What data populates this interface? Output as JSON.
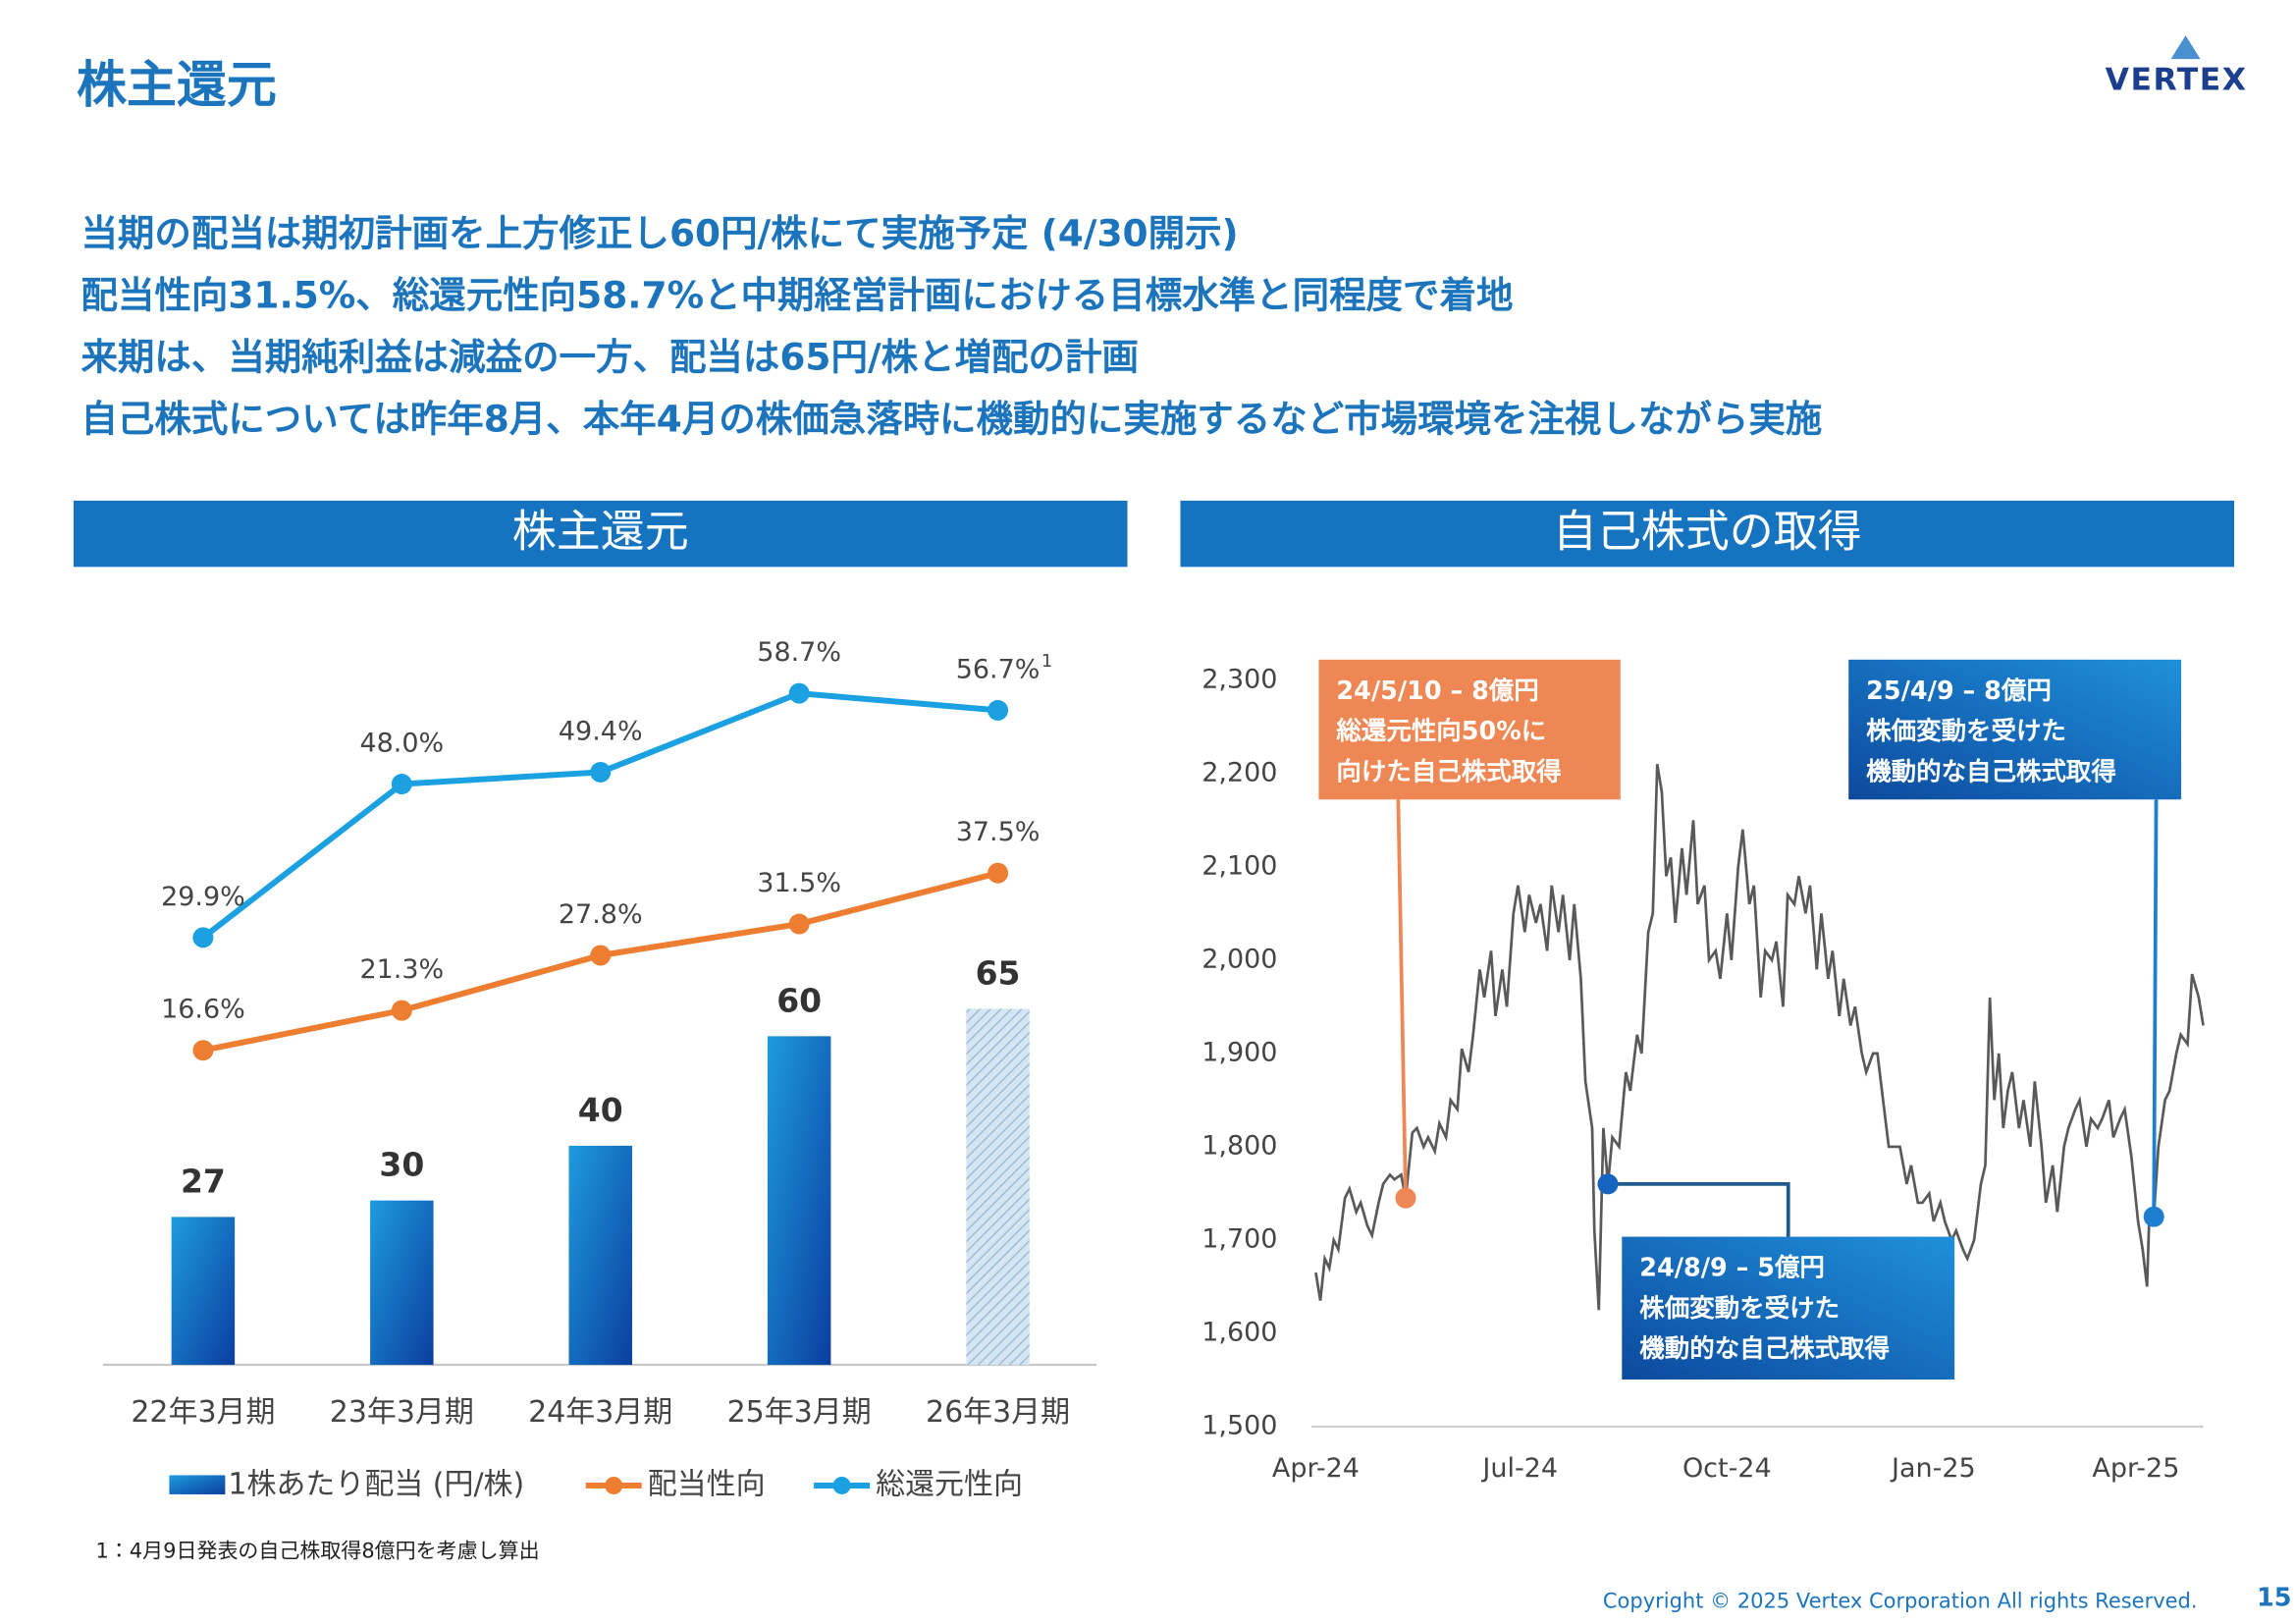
{
  "header": {
    "title": "株主還元",
    "logo": "VERTEX"
  },
  "bullets": [
    "当期の配当は期初計画を上方修正し60円/株にて実施予定 (4/30開示)",
    "配当性向31.5%、総還元性向58.7%と中期経営計画における目標水準と同程度で着地",
    "来期は、当期純利益は減益の一方、配当は65円/株と増配の計画",
    "自己株式については昨年8月、本年4月の株価急落時に機動的に実施するなど市場環境を注視しながら実施"
  ],
  "footnote": "1：4月9日発表の自己株取得8億円を考慮し算出",
  "copyright": "Copyright © 2025 Vertex Corporation All rights Reserved.",
  "page_number": "15",
  "chart_data": [
    {
      "type": "combo",
      "title": "株主還元",
      "categories": [
        "22年3月期",
        "23年3月期",
        "24年3月期",
        "25年3月期",
        "26年3月期"
      ],
      "series": [
        {
          "name": "1株あたり配当 (円/株)",
          "type": "bar",
          "color": "#1565C0",
          "values": [
            27,
            30,
            40,
            60,
            65
          ],
          "patterns": [
            "solid",
            "solid",
            "solid",
            "solid",
            "hatched"
          ]
        },
        {
          "name": "配当性向",
          "type": "line",
          "color": "#ED7D31",
          "values": [
            16.6,
            21.3,
            27.8,
            31.5,
            37.5
          ],
          "value_labels": [
            "16.6%",
            "21.3%",
            "27.8%",
            "31.5%",
            "37.5%"
          ]
        },
        {
          "name": "総還元性向",
          "type": "line",
          "color": "#1BA1E2",
          "values": [
            29.9,
            48.0,
            49.4,
            58.7,
            56.7
          ],
          "value_labels": [
            "29.9%",
            "48.0%",
            "49.4%",
            "58.7%",
            "56.7%"
          ],
          "footnote_marks": [
            null,
            null,
            null,
            null,
            "1"
          ]
        }
      ]
    },
    {
      "type": "line",
      "title": "自己株式の取得",
      "color": "#595959",
      "grid": false,
      "xlim": [
        0,
        395
      ],
      "xticks": [
        {
          "value": 0,
          "label": "Apr-24"
        },
        {
          "value": 91,
          "label": "Jul-24"
        },
        {
          "value": 183,
          "label": "Oct-24"
        },
        {
          "value": 275,
          "label": "Jan-25"
        },
        {
          "value": 365,
          "label": "Apr-25"
        }
      ],
      "ylim": [
        1500,
        2300
      ],
      "yticks": [
        {
          "value": 1500,
          "label": "1,500"
        },
        {
          "value": 1600,
          "label": "1,600"
        },
        {
          "value": 1700,
          "label": "1,700"
        },
        {
          "value": 1800,
          "label": "1,800"
        },
        {
          "value": 1900,
          "label": "1,900"
        },
        {
          "value": 2000,
          "label": "2,000"
        },
        {
          "value": 2100,
          "label": "2,100"
        },
        {
          "value": 2200,
          "label": "2,200"
        },
        {
          "value": 2300,
          "label": "2,300"
        }
      ],
      "x": [
        0,
        2,
        4,
        6,
        8,
        10,
        13,
        15,
        18,
        20,
        23,
        25,
        28,
        30,
        33,
        35,
        38,
        40,
        43,
        45,
        48,
        50,
        53,
        55,
        58,
        60,
        63,
        65,
        68,
        70,
        73,
        75,
        78,
        80,
        83,
        85,
        88,
        90,
        93,
        95,
        98,
        100,
        103,
        105,
        108,
        110,
        113,
        115,
        118,
        120,
        123,
        124,
        126,
        128,
        130,
        132,
        135,
        138,
        140,
        143,
        145,
        148,
        150,
        152,
        154,
        156,
        158,
        160,
        163,
        165,
        168,
        170,
        173,
        175,
        178,
        180,
        183,
        185,
        188,
        190,
        193,
        195,
        198,
        200,
        203,
        205,
        208,
        210,
        213,
        215,
        218,
        220,
        223,
        225,
        228,
        230,
        233,
        235,
        238,
        240,
        243,
        245,
        248,
        250,
        253,
        255,
        258,
        260,
        263,
        265,
        268,
        270,
        273,
        275,
        278,
        280,
        283,
        285,
        288,
        290,
        293,
        296,
        298,
        300,
        302,
        304,
        306,
        308,
        310,
        313,
        315,
        318,
        320,
        323,
        325,
        328,
        330,
        333,
        335,
        338,
        340,
        343,
        345,
        348,
        350,
        353,
        355,
        358,
        360,
        363,
        366,
        368,
        370,
        371,
        373,
        375,
        378,
        380,
        383,
        385,
        388,
        390,
        393,
        395
      ],
      "values": [
        1665,
        1635,
        1680,
        1670,
        1700,
        1690,
        1745,
        1755,
        1730,
        1740,
        1715,
        1705,
        1740,
        1760,
        1770,
        1765,
        1770,
        1745,
        1815,
        1820,
        1800,
        1810,
        1795,
        1825,
        1810,
        1850,
        1840,
        1905,
        1880,
        1920,
        1990,
        1960,
        2010,
        1940,
        1990,
        1950,
        2050,
        2080,
        2030,
        2070,
        2040,
        2060,
        2010,
        2080,
        2030,
        2070,
        2000,
        2060,
        1980,
        1870,
        1820,
        1710,
        1625,
        1820,
        1760,
        1810,
        1800,
        1880,
        1860,
        1920,
        1900,
        2030,
        2050,
        2210,
        2180,
        2090,
        2110,
        2040,
        2120,
        2070,
        2150,
        2060,
        2080,
        2000,
        2010,
        1980,
        2050,
        2000,
        2100,
        2140,
        2060,
        2080,
        1960,
        2010,
        2000,
        2020,
        1950,
        2070,
        2060,
        2090,
        2050,
        2080,
        1990,
        2050,
        1980,
        2010,
        1940,
        1980,
        1930,
        1950,
        1900,
        1880,
        1900,
        1900,
        1840,
        1800,
        1800,
        1800,
        1760,
        1780,
        1740,
        1740,
        1750,
        1720,
        1740,
        1720,
        1700,
        1710,
        1690,
        1680,
        1700,
        1760,
        1780,
        1960,
        1850,
        1900,
        1820,
        1860,
        1880,
        1820,
        1850,
        1800,
        1870,
        1800,
        1740,
        1780,
        1730,
        1800,
        1820,
        1840,
        1850,
        1800,
        1830,
        1820,
        1830,
        1850,
        1810,
        1830,
        1840,
        1790,
        1720,
        1690,
        1650,
        1730,
        1725,
        1800,
        1850,
        1860,
        1900,
        1920,
        1910,
        1985,
        1960,
        1930
      ],
      "events": [
        {
          "x": 40,
          "value": 1745,
          "color": "#EE8753",
          "label": [
            "24/5/10 – 8億円",
            "総還元性向50%に",
            "向けた自己株式取得"
          ]
        },
        {
          "x": 130,
          "value": 1760,
          "color": "#1565C0",
          "label": [
            "24/8/9 – 5億円",
            "株価変動を受けた",
            "機動的な自己株式取得"
          ]
        },
        {
          "x": 373,
          "value": 1725,
          "color": "#1E7FD0",
          "label": [
            "25/4/9 – 8億円",
            "株価変動を受けた",
            "機動的な自己株式取得"
          ]
        }
      ]
    }
  ]
}
